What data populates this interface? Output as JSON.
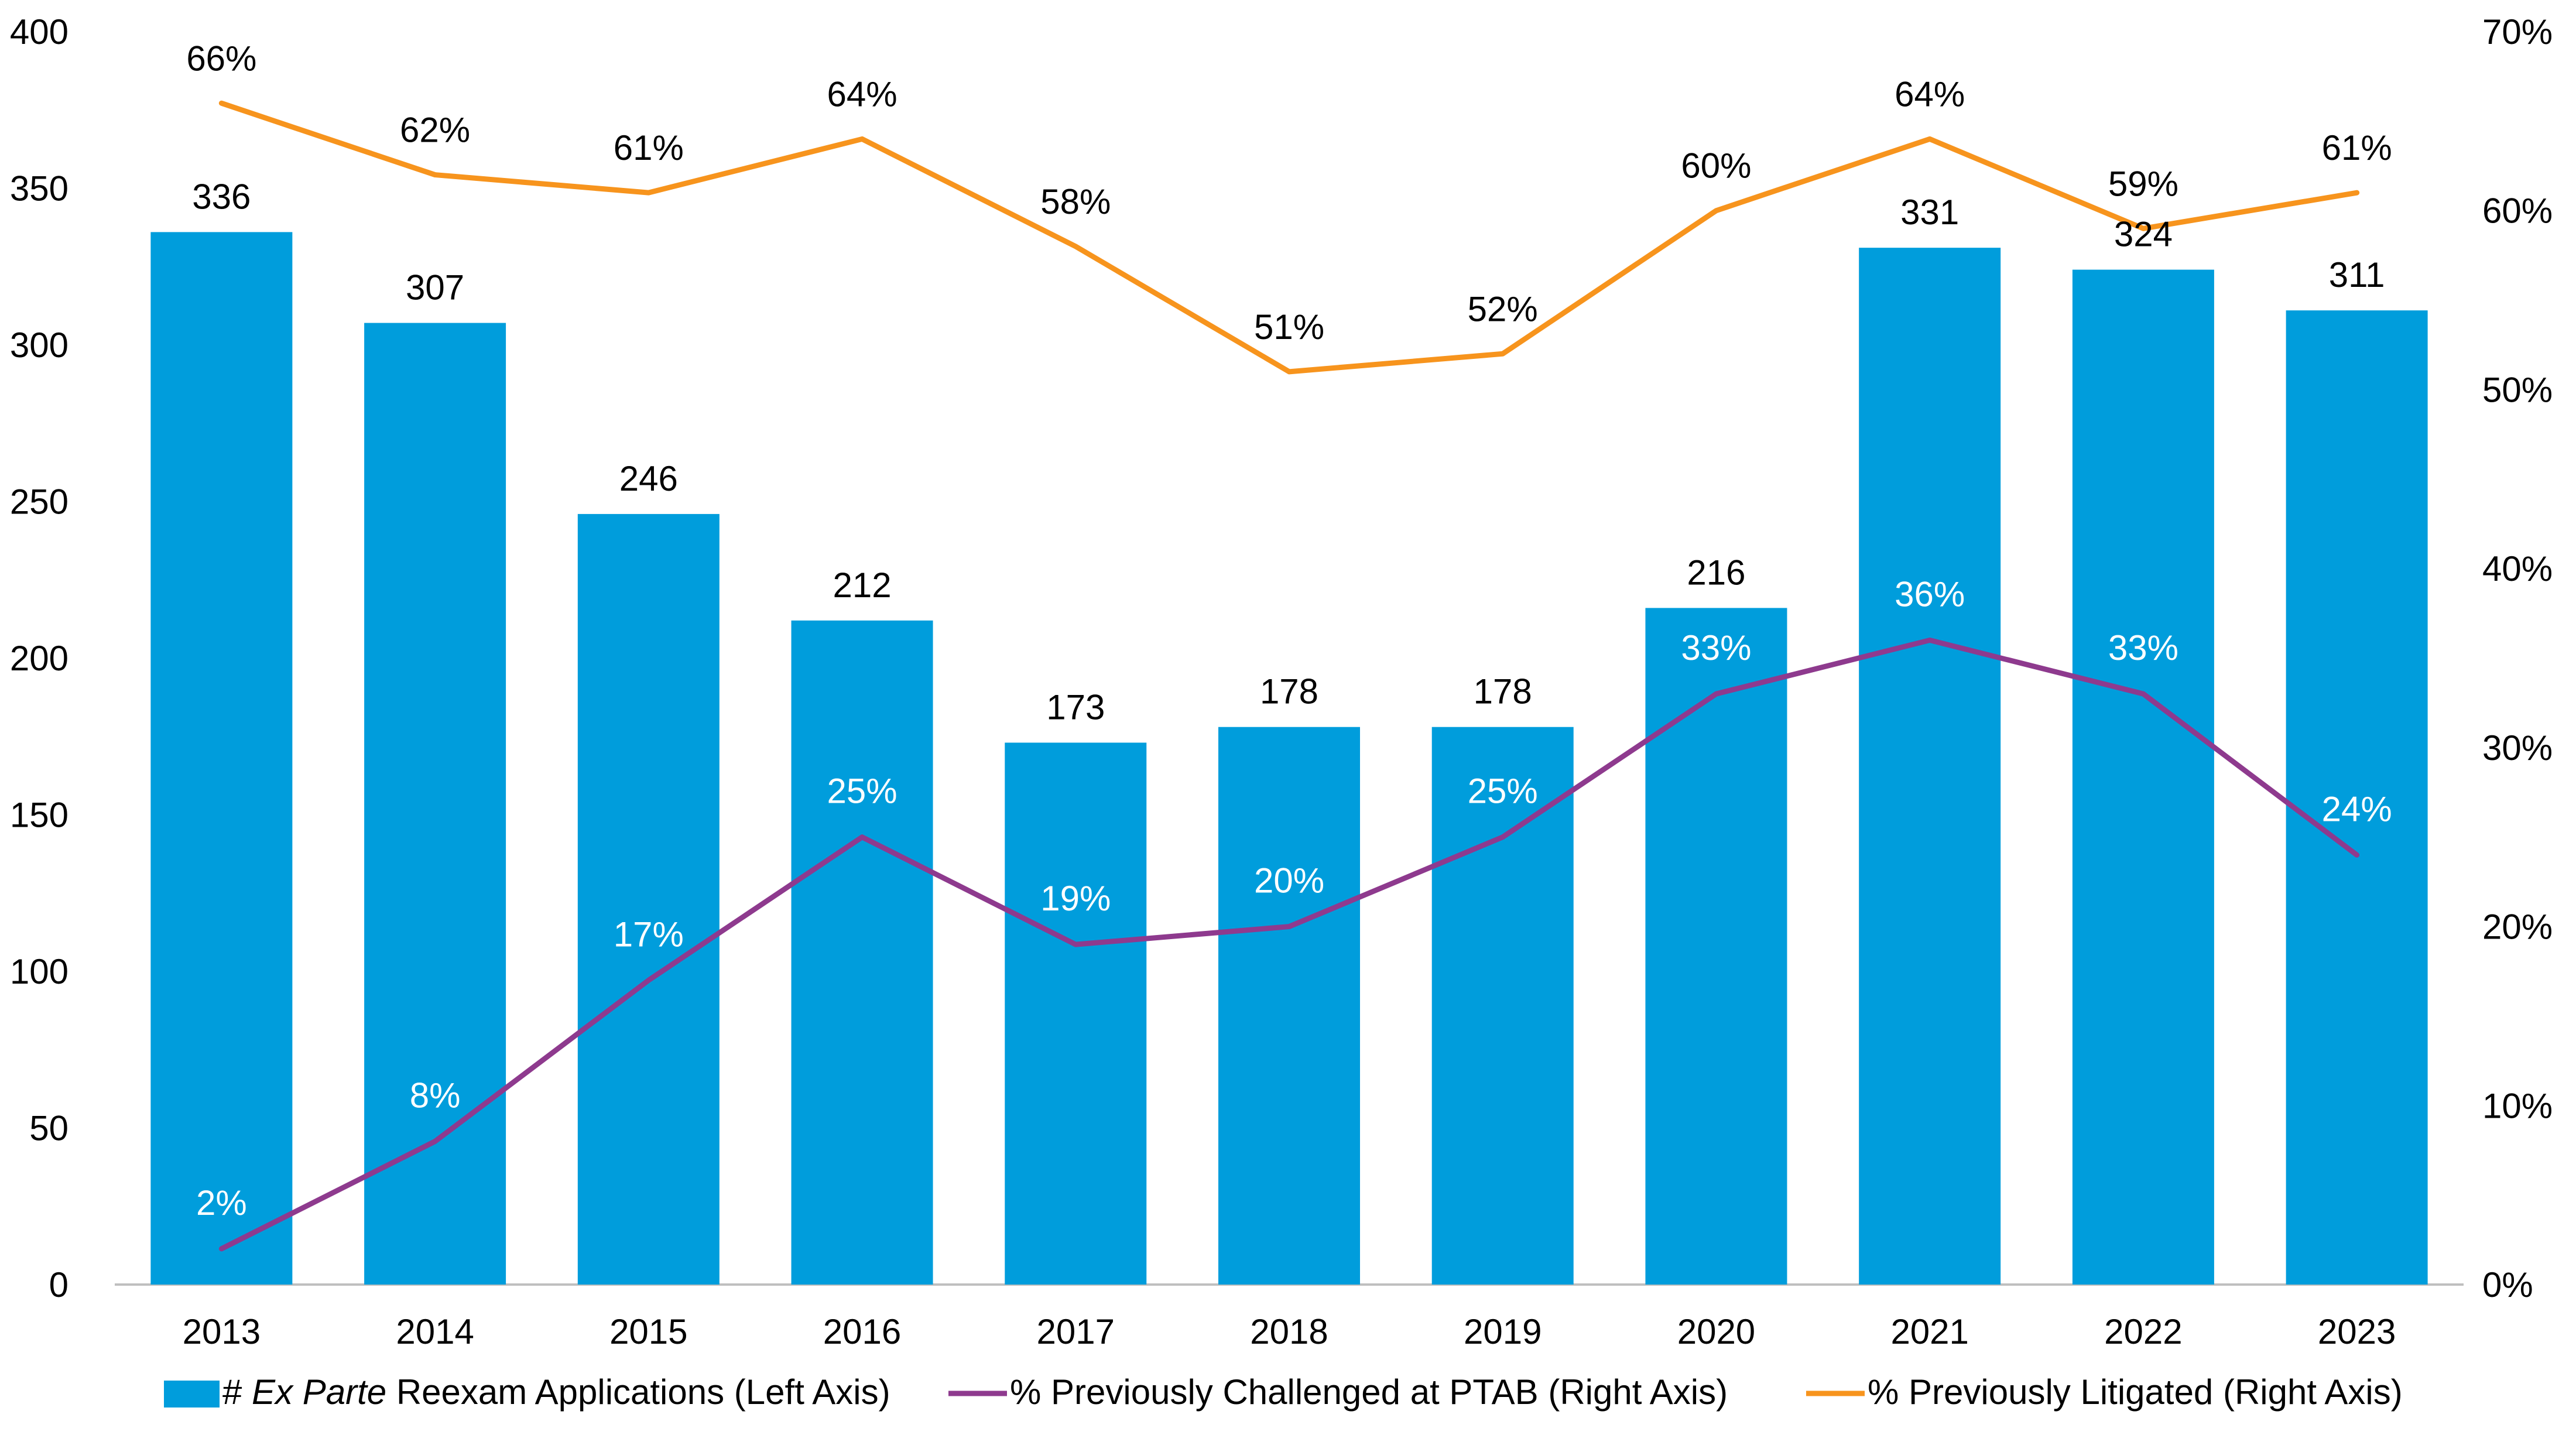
{
  "chart_data": {
    "type": "bar",
    "categories": [
      "2013",
      "2014",
      "2015",
      "2016",
      "2017",
      "2018",
      "2019",
      "2020",
      "2021",
      "2022",
      "2023"
    ],
    "left_axis": {
      "ylim": [
        0,
        400
      ],
      "ticks": [
        "0",
        "50",
        "100",
        "150",
        "200",
        "250",
        "300",
        "350",
        "400"
      ]
    },
    "right_axis": {
      "ylim": [
        0,
        70
      ],
      "ticks": [
        "0%",
        "10%",
        "20%",
        "30%",
        "40%",
        "50%",
        "60%",
        "70%"
      ]
    },
    "series": [
      {
        "name": "Ex Parte Reexam Applications",
        "type": "bar",
        "axis": "left",
        "color": "#009ddc",
        "values": [
          336,
          307,
          246,
          212,
          173,
          178,
          178,
          216,
          331,
          324,
          311
        ],
        "labels": [
          "336",
          "307",
          "246",
          "212",
          "173",
          "178",
          "178",
          "216",
          "331",
          "324",
          "311"
        ]
      },
      {
        "name": "% Previously Challenged at PTAB (Right Axis)",
        "type": "line",
        "axis": "right",
        "color": "#8e3a8e",
        "values": [
          2,
          8,
          17,
          25,
          19,
          20,
          25,
          33,
          36,
          33,
          24
        ],
        "labels": [
          "2%",
          "8%",
          "17%",
          "25%",
          "19%",
          "20%",
          "25%",
          "33%",
          "36%",
          "33%",
          "24%"
        ]
      },
      {
        "name": "% Previously Litigated (Right Axis)",
        "type": "line",
        "axis": "right",
        "color": "#f7941d",
        "values": [
          66,
          62,
          61,
          64,
          58,
          51,
          52,
          60,
          64,
          59,
          61
        ],
        "labels": [
          "66%",
          "62%",
          "61%",
          "64%",
          "58%",
          "51%",
          "52%",
          "60%",
          "64%",
          "59%",
          "61%"
        ]
      }
    ],
    "legend": {
      "placement": "bottom",
      "bar_prefix": "# ",
      "bar_italic": "Ex Parte",
      "bar_suffix": " Reexam Applications (Left Axis)",
      "items": [
        "% Previously Challenged at PTAB (Right Axis)",
        "% Previously Litigated (Right Axis)"
      ]
    },
    "grid": false
  }
}
